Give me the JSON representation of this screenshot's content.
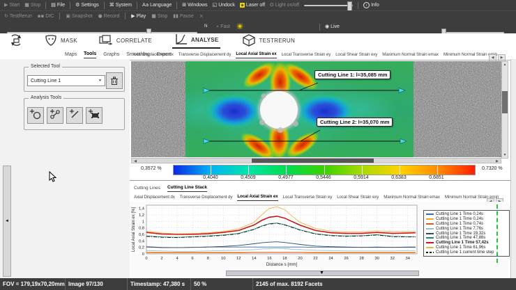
{
  "menubar": {
    "items": [
      {
        "label": "Start",
        "icon": "play-icon",
        "enabled": false
      },
      {
        "label": "Stop",
        "icon": "stop-icon",
        "enabled": false
      },
      {
        "sep": true
      },
      {
        "label": "File",
        "icon": "folder-icon",
        "enabled": true
      },
      {
        "sep": true
      },
      {
        "label": "Settings",
        "icon": "gear-icon",
        "enabled": true
      },
      {
        "sep": true
      },
      {
        "label": "System",
        "icon": "system-icon",
        "enabled": true
      },
      {
        "sep": true
      },
      {
        "label": "Language",
        "icon": "language-icon",
        "enabled": true
      },
      {
        "sep": true
      },
      {
        "label": "Windows",
        "icon": "windows-icon",
        "enabled": true
      },
      {
        "label": "Undock",
        "icon": "undock-icon",
        "enabled": true
      },
      {
        "label": "Laser off",
        "icon": "laser-icon",
        "enabled": true
      },
      {
        "label": "Light on/off",
        "icon": "bulb-icon",
        "enabled": false
      },
      {
        "slider": true
      },
      {
        "sep": true
      },
      {
        "label": "Info",
        "icon": "info-icon",
        "enabled": true
      }
    ]
  },
  "toolbar2": {
    "items": [
      {
        "label": "TestRerun",
        "icon": "rerun-icon",
        "enabled": false
      },
      {
        "label": "DIC",
        "icon": "dic-icon",
        "enabled": false
      },
      {
        "sep": true
      },
      {
        "label": "Snapshot",
        "icon": "snapshot-icon",
        "enabled": false
      },
      {
        "label": "Record",
        "icon": "record-icon",
        "enabled": false
      },
      {
        "sep": true
      },
      {
        "label": "Play",
        "icon": "play-icon",
        "enabled": true
      },
      {
        "label": "Stop",
        "icon": "stop-icon",
        "enabled": false
      },
      {
        "label": "Pause",
        "icon": "pause-icon",
        "enabled": false
      },
      {
        "label": "",
        "icon": "small-x-icon",
        "enabled": false
      }
    ]
  },
  "toolbar3": {
    "n_label": "N",
    "fast_label": "Fast",
    "live_label": "Live"
  },
  "workflow": {
    "steps": [
      {
        "label": "",
        "icon": "project-icon",
        "active": false
      },
      {
        "label": "MASK",
        "icon": "mask-icon",
        "active": false
      },
      {
        "label": "CORRELATE",
        "icon": "correlate-icon",
        "active": false
      },
      {
        "label": "ANALYSE",
        "icon": "analyse-icon",
        "active": true
      },
      {
        "label": "TESTRERUN",
        "icon": "testrerun-icon",
        "active": false
      }
    ]
  },
  "main_tabs": {
    "labels": [
      "Maps",
      "Tools",
      "Graphs",
      "Smoothing",
      "Export"
    ],
    "active": "Tools"
  },
  "map_tabs": {
    "labels": [
      "Axial Displacement dx",
      "Transverse Displacement dy",
      "Local Axial Strain ex",
      "Local Transverse Strain ey",
      "Local Shear Strain exy",
      "Maximum Normal Strain emax",
      "Minimum Normal Strain emin"
    ],
    "active": "Local Axial Strain ex"
  },
  "left_panel": {
    "selected_tool_title": "Selected Tool",
    "selected_tool_value": "Cutting Line 1",
    "analysis_tools_title": "Analysis Tools",
    "tools": [
      {
        "icon": "add-circle-icon"
      },
      {
        "icon": "add-point-pair-icon"
      },
      {
        "icon": "add-line-icon"
      },
      {
        "icon": "add-area-icon"
      }
    ]
  },
  "image_view": {
    "annotation1": "Cutting Line 1: l=35,085 mm",
    "annotation2": "Cutting Line 2: l=35,070 mm"
  },
  "color_scale": {
    "min_label": "0,3572 %",
    "max_label": "0,7320 %",
    "tick_labels": [
      "0,4040",
      "0,4509",
      "0,4977",
      "0,5446",
      "0,5914",
      "0,6383",
      "0,6851"
    ],
    "stops": [
      "#0a28e6",
      "#00b4f5",
      "#00e6a8",
      "#00dc50",
      "#3cd200",
      "#a8dc00",
      "#ffd200",
      "#ff8c00",
      "#ff1e00"
    ]
  },
  "bottom_tabs": {
    "labels": [
      "Cutting Lines",
      "Cutting Line Stack"
    ],
    "active": "Cutting Line Stack"
  },
  "chart_data": {
    "type": "line",
    "xlabel": "Distance s [mm]",
    "ylabel": "Local Axial Strain ex [%]",
    "xlim": [
      0,
      35.2
    ],
    "ylim": [
      0,
      1.5
    ],
    "xticks": [
      0,
      2,
      4,
      6,
      8,
      10,
      12,
      14,
      16,
      18,
      20,
      22,
      24,
      26,
      28,
      30,
      32,
      34
    ],
    "yticks": [
      {
        "v": 0,
        "label": "0"
      },
      {
        "v": 0.2,
        "label": "0,2"
      },
      {
        "v": 0.4,
        "label": "0,4"
      },
      {
        "v": 0.6,
        "label": "0,6"
      },
      {
        "v": 0.8,
        "label": "0,8"
      },
      {
        "v": 1,
        "label": "1"
      },
      {
        "v": 1.2,
        "label": "1,2"
      },
      {
        "v": 1.4,
        "label": "1,4"
      }
    ],
    "grid": true,
    "legend_position": "right",
    "x": [
      0,
      2,
      4,
      6,
      8,
      10,
      12,
      14,
      15,
      16,
      17,
      18,
      19,
      20,
      22,
      24,
      26,
      28,
      30,
      32,
      34,
      35
    ],
    "series": [
      {
        "name": "Cutting Line 1 Time 0,24s",
        "color": "#3a6ea5",
        "bold": false,
        "dash": "",
        "values": [
          0.22,
          0.2,
          0.19,
          0.2,
          0.21,
          0.21,
          0.21,
          0.21,
          0.21,
          0.21,
          0.21,
          0.21,
          0.21,
          0.21,
          0.2,
          0.2,
          0.2,
          0.2,
          0.21,
          0.2,
          0.2,
          0.2
        ]
      },
      {
        "name": "Cutting Line 1 Time 0,24s",
        "color": "#f5a623",
        "bold": false,
        "dash": "",
        "values": [
          0.06,
          0.05,
          0.05,
          0.05,
          0.05,
          0.05,
          0.05,
          0.05,
          0.05,
          0.05,
          0.05,
          0.05,
          0.05,
          0.05,
          0.05,
          0.05,
          0.05,
          0.05,
          0.05,
          0.05,
          0.05,
          0.05
        ]
      },
      {
        "name": "Cutting Line 1 Time 0,74s",
        "color": "#e8531f",
        "bold": false,
        "dash": "",
        "values": [
          0.03,
          0.03,
          0.03,
          0.03,
          0.03,
          0.03,
          0.03,
          0.04,
          0.04,
          0.04,
          0.04,
          0.04,
          0.04,
          0.04,
          0.03,
          0.03,
          0.03,
          0.03,
          0.03,
          0.03,
          0.03,
          0.03
        ]
      },
      {
        "name": "Cutting Line 1 Time 7,76s",
        "color": "#8fc3cf",
        "bold": false,
        "dash": "",
        "values": [
          0.1,
          0.09,
          0.08,
          0.08,
          0.09,
          0.1,
          0.11,
          0.13,
          0.15,
          0.16,
          0.17,
          0.16,
          0.14,
          0.13,
          0.11,
          0.1,
          0.09,
          0.09,
          0.09,
          0.09,
          0.1,
          0.1
        ]
      },
      {
        "name": "Cutting Line 1 Time 19,32s",
        "color": "#2e4a66",
        "bold": false,
        "dash": "",
        "values": [
          0.21,
          0.19,
          0.19,
          0.2,
          0.21,
          0.23,
          0.26,
          0.31,
          0.34,
          0.36,
          0.37,
          0.35,
          0.32,
          0.29,
          0.24,
          0.22,
          0.21,
          0.2,
          0.2,
          0.2,
          0.21,
          0.21
        ]
      },
      {
        "name": "Cutting Line 1 Time 47,88s",
        "color": "#1a8a70",
        "bold": false,
        "dash": "",
        "values": [
          0.55,
          0.52,
          0.51,
          0.53,
          0.55,
          0.58,
          0.63,
          0.76,
          0.86,
          0.93,
          0.95,
          0.9,
          0.82,
          0.74,
          0.62,
          0.57,
          0.55,
          0.56,
          0.59,
          0.54,
          0.53,
          0.53
        ]
      },
      {
        "name": "Cutting Line 1 Time 57,42s",
        "color": "#cc1414",
        "bold": true,
        "dash": "",
        "values": [
          0.66,
          0.61,
          0.6,
          0.6,
          0.62,
          0.66,
          0.72,
          0.89,
          1.03,
          1.13,
          1.16,
          1.1,
          0.99,
          0.88,
          0.72,
          0.65,
          0.63,
          0.63,
          0.66,
          0.63,
          0.64,
          0.65
        ]
      },
      {
        "name": "Cutting Line 1 Time 61,96s",
        "color": "#f0b345",
        "bold": false,
        "dash": "",
        "values": [
          0.7,
          0.64,
          0.62,
          0.63,
          0.65,
          0.69,
          0.77,
          0.97,
          1.2,
          1.4,
          1.45,
          1.36,
          1.15,
          0.97,
          0.78,
          0.7,
          0.68,
          0.68,
          0.71,
          0.69,
          0.69,
          0.7
        ]
      },
      {
        "name": "Cutting Line 1 current time step",
        "color": "#111111",
        "bold": false,
        "dash": "5,2,1,2",
        "values": [
          0.54,
          0.51,
          0.5,
          0.52,
          0.54,
          0.57,
          0.62,
          0.75,
          0.85,
          0.92,
          0.94,
          0.89,
          0.81,
          0.73,
          0.61,
          0.56,
          0.54,
          0.55,
          0.58,
          0.53,
          0.52,
          0.52
        ]
      }
    ]
  },
  "statusbar": {
    "fov": "FOV = 179,19x70,20mm",
    "image": "Image 97/130",
    "timestamp": "Timestamp: 47,380 s",
    "percent": "50 %",
    "facets": "2145 of max. 8192 Facets"
  }
}
